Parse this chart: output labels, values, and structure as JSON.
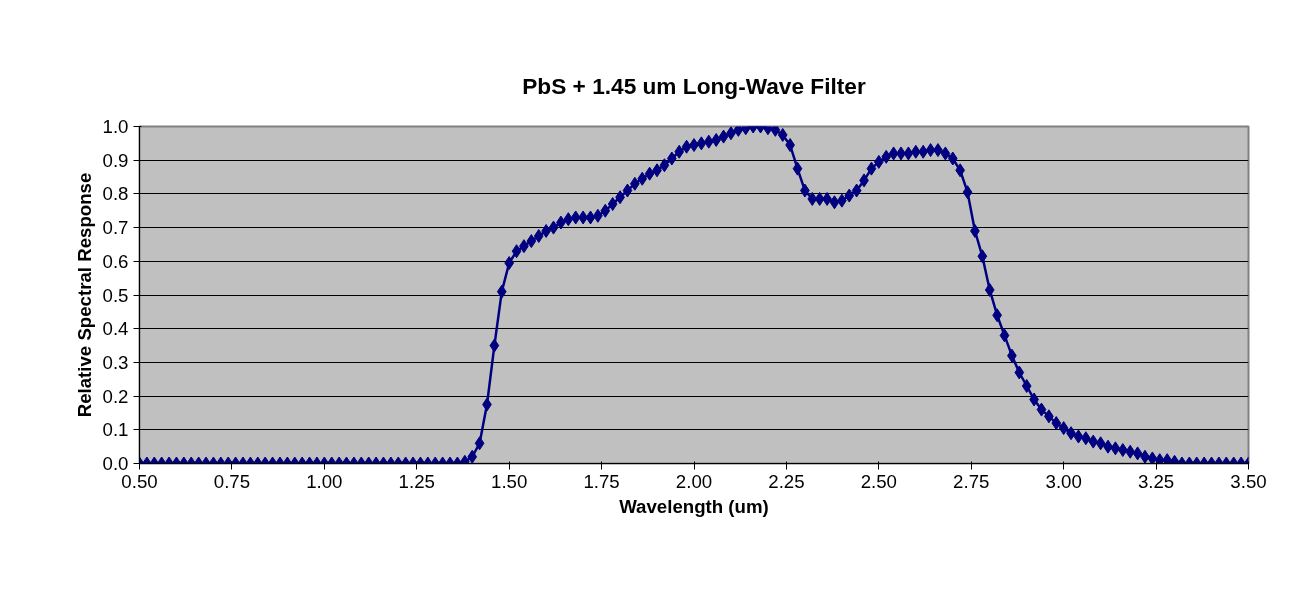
{
  "chart_data": {
    "type": "line",
    "title": "PbS + 1.45 um Long-Wave Filter",
    "xlabel": "Wavelength (um)",
    "ylabel": "Relative Spectral Response",
    "x": [
      0.5,
      0.52,
      0.54,
      0.56,
      0.58,
      0.6,
      0.62,
      0.64,
      0.66,
      0.68,
      0.7,
      0.72,
      0.74,
      0.76,
      0.78,
      0.8,
      0.82,
      0.84,
      0.86,
      0.88,
      0.9,
      0.92,
      0.94,
      0.96,
      0.98,
      1.0,
      1.02,
      1.04,
      1.06,
      1.08,
      1.1,
      1.12,
      1.14,
      1.16,
      1.18,
      1.2,
      1.22,
      1.24,
      1.26,
      1.28,
      1.3,
      1.32,
      1.34,
      1.36,
      1.38,
      1.4,
      1.42,
      1.44,
      1.46,
      1.48,
      1.5,
      1.52,
      1.54,
      1.56,
      1.58,
      1.6,
      1.62,
      1.64,
      1.66,
      1.68,
      1.7,
      1.72,
      1.74,
      1.76,
      1.78,
      1.8,
      1.82,
      1.84,
      1.86,
      1.88,
      1.9,
      1.92,
      1.94,
      1.96,
      1.98,
      2.0,
      2.02,
      2.04,
      2.06,
      2.08,
      2.1,
      2.12,
      2.14,
      2.16,
      2.18,
      2.2,
      2.22,
      2.24,
      2.26,
      2.28,
      2.3,
      2.32,
      2.34,
      2.36,
      2.38,
      2.4,
      2.42,
      2.44,
      2.46,
      2.48,
      2.5,
      2.52,
      2.54,
      2.56,
      2.58,
      2.6,
      2.62,
      2.64,
      2.66,
      2.68,
      2.7,
      2.72,
      2.74,
      2.76,
      2.78,
      2.8,
      2.82,
      2.84,
      2.86,
      2.88,
      2.9,
      2.92,
      2.94,
      2.96,
      2.98,
      3.0,
      3.02,
      3.04,
      3.06,
      3.08,
      3.1,
      3.12,
      3.14,
      3.16,
      3.18,
      3.2,
      3.22,
      3.24,
      3.26,
      3.28,
      3.3,
      3.32,
      3.34,
      3.36,
      3.38,
      3.4,
      3.42,
      3.44,
      3.46,
      3.48,
      3.5
    ],
    "series": [
      {
        "color": "#000080",
        "values": [
          0,
          0,
          0,
          0,
          0,
          0,
          0,
          0,
          0,
          0,
          0,
          0,
          0,
          0,
          0,
          0,
          0,
          0,
          0,
          0,
          0,
          0,
          0,
          0,
          0,
          0,
          0,
          0,
          0,
          0,
          0,
          0,
          0,
          0,
          0,
          0,
          0,
          0,
          0,
          0,
          0,
          0,
          0,
          0,
          0.005,
          0.02,
          0.06,
          0.175,
          0.35,
          0.51,
          0.595,
          0.63,
          0.645,
          0.66,
          0.675,
          0.69,
          0.7,
          0.715,
          0.725,
          0.73,
          0.73,
          0.73,
          0.735,
          0.75,
          0.77,
          0.79,
          0.81,
          0.83,
          0.845,
          0.86,
          0.87,
          0.885,
          0.905,
          0.925,
          0.94,
          0.945,
          0.95,
          0.955,
          0.96,
          0.97,
          0.98,
          0.99,
          0.995,
          1.0,
          1.0,
          0.995,
          0.99,
          0.975,
          0.945,
          0.875,
          0.81,
          0.785,
          0.785,
          0.785,
          0.775,
          0.78,
          0.795,
          0.81,
          0.84,
          0.875,
          0.895,
          0.91,
          0.92,
          0.92,
          0.92,
          0.925,
          0.925,
          0.93,
          0.93,
          0.92,
          0.905,
          0.87,
          0.805,
          0.69,
          0.615,
          0.515,
          0.44,
          0.38,
          0.32,
          0.27,
          0.23,
          0.19,
          0.16,
          0.14,
          0.12,
          0.105,
          0.09,
          0.08,
          0.075,
          0.065,
          0.06,
          0.05,
          0.045,
          0.04,
          0.035,
          0.03,
          0.02,
          0.015,
          0.01,
          0.01,
          0.005,
          0,
          0,
          0,
          0,
          0,
          0,
          0,
          0,
          0,
          0
        ]
      }
    ],
    "xlim": [
      0.5,
      3.5
    ],
    "ylim": [
      0,
      1
    ],
    "xticks": [
      {
        "value": 0.5,
        "label": "0.50"
      },
      {
        "value": 0.75,
        "label": "0.75"
      },
      {
        "value": 1,
        "label": "1.00"
      },
      {
        "value": 1.25,
        "label": "1.25"
      },
      {
        "value": 1.5,
        "label": "1.50"
      },
      {
        "value": 1.75,
        "label": "1.75"
      },
      {
        "value": 2,
        "label": "2.00"
      },
      {
        "value": 2.25,
        "label": "2.25"
      },
      {
        "value": 2.5,
        "label": "2.50"
      },
      {
        "value": 2.75,
        "label": "2.75"
      },
      {
        "value": 3,
        "label": "3.00"
      },
      {
        "value": 3.25,
        "label": "3.25"
      },
      {
        "value": 3.5,
        "label": "3.50"
      }
    ],
    "yticks": [
      {
        "value": 0,
        "label": "0.0"
      },
      {
        "value": 0.1,
        "label": "0.1"
      },
      {
        "value": 0.2,
        "label": "0.2"
      },
      {
        "value": 0.3,
        "label": "0.3"
      },
      {
        "value": 0.4,
        "label": "0.4"
      },
      {
        "value": 0.5,
        "label": "0.5"
      },
      {
        "value": 0.6,
        "label": "0.6"
      },
      {
        "value": 0.7,
        "label": "0.7"
      },
      {
        "value": 0.8,
        "label": "0.8"
      },
      {
        "value": 0.9,
        "label": "0.9"
      },
      {
        "value": 1,
        "label": "1.0"
      }
    ],
    "grid": "y",
    "marker": "diamond",
    "line_style": "solid"
  }
}
